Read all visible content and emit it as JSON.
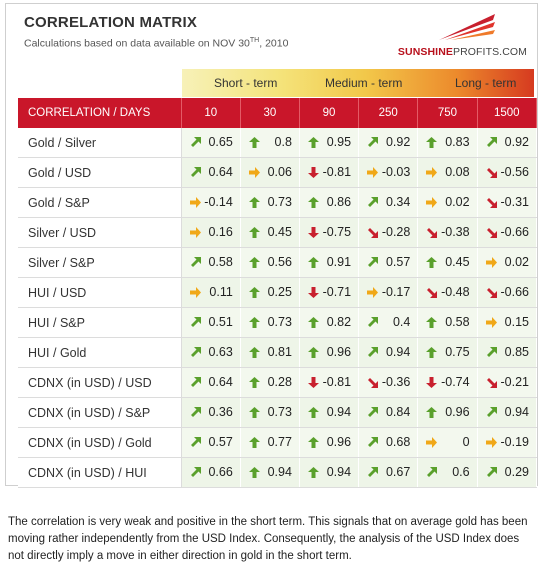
{
  "header": {
    "title": "CORRELATION MATRIX",
    "subtitle_prefix": "Calculations based on data available on  NOV 30",
    "subtitle_sup": "TH",
    "subtitle_suffix": ", 2010",
    "logo_main": "SUNSHINE",
    "logo_rest": "PROFITS.COM"
  },
  "bands": {
    "short": "Short - term",
    "medium": "Medium - term",
    "long": "Long - term"
  },
  "columns": {
    "label": "CORRELATION / DAYS",
    "days": [
      "10",
      "30",
      "90",
      "250",
      "750",
      "1500"
    ]
  },
  "colors": {
    "up": "#5aa02c",
    "down": "#c8202e",
    "side": "#f0a818",
    "header_red": "#c9162a"
  },
  "rows": [
    {
      "pair": "Gold / Silver",
      "values": [
        "0.65",
        "0.8",
        "0.95",
        "0.92",
        "0.83",
        "0.92"
      ],
      "dirs": [
        "up-right",
        "up",
        "up",
        "up-right",
        "up",
        "up-right"
      ]
    },
    {
      "pair": "Gold / USD",
      "values": [
        "0.64",
        "0.06",
        "-0.81",
        "-0.03",
        "0.08",
        "-0.56"
      ],
      "dirs": [
        "up-right",
        "right",
        "down",
        "right",
        "right",
        "down-right"
      ]
    },
    {
      "pair": "Gold / S&P",
      "values": [
        "-0.14",
        "0.73",
        "0.86",
        "0.34",
        "0.02",
        "-0.31"
      ],
      "dirs": [
        "right",
        "up",
        "up",
        "up-right",
        "right",
        "down-right"
      ]
    },
    {
      "pair": "Silver / USD",
      "values": [
        "0.16",
        "0.45",
        "-0.75",
        "-0.28",
        "-0.38",
        "-0.66"
      ],
      "dirs": [
        "right",
        "up",
        "down",
        "down-right",
        "down-right",
        "down-right"
      ]
    },
    {
      "pair": "Silver / S&P",
      "values": [
        "0.58",
        "0.56",
        "0.91",
        "0.57",
        "0.45",
        "0.02"
      ],
      "dirs": [
        "up-right",
        "up",
        "up",
        "up-right",
        "up",
        "right"
      ]
    },
    {
      "pair": "HUI / USD",
      "values": [
        "0.11",
        "0.25",
        "-0.71",
        "-0.17",
        "-0.48",
        "-0.66"
      ],
      "dirs": [
        "right",
        "up",
        "down",
        "right",
        "down-right",
        "down-right"
      ]
    },
    {
      "pair": "HUI / S&P",
      "values": [
        "0.51",
        "0.73",
        "0.82",
        "0.4",
        "0.58",
        "0.15"
      ],
      "dirs": [
        "up-right",
        "up",
        "up",
        "up-right",
        "up",
        "right"
      ]
    },
    {
      "pair": "HUI / Gold",
      "values": [
        "0.63",
        "0.81",
        "0.96",
        "0.94",
        "0.75",
        "0.85"
      ],
      "dirs": [
        "up-right",
        "up",
        "up",
        "up-right",
        "up",
        "up-right"
      ]
    },
    {
      "pair": "CDNX (in USD) / USD",
      "values": [
        "0.64",
        "0.28",
        "-0.81",
        "-0.36",
        "-0.74",
        "-0.21"
      ],
      "dirs": [
        "up-right",
        "up",
        "down",
        "down-right",
        "down",
        "down-right"
      ]
    },
    {
      "pair": "CDNX (in USD) / S&P",
      "values": [
        "0.36",
        "0.73",
        "0.94",
        "0.84",
        "0.96",
        "0.94"
      ],
      "dirs": [
        "up-right",
        "up",
        "up",
        "up-right",
        "up",
        "up-right"
      ]
    },
    {
      "pair": "CDNX (in USD) / Gold",
      "values": [
        "0.57",
        "0.77",
        "0.96",
        "0.68",
        "0",
        "-0.19"
      ],
      "dirs": [
        "up-right",
        "up",
        "up",
        "up-right",
        "right",
        "right"
      ]
    },
    {
      "pair": "CDNX (in USD) / HUI",
      "values": [
        "0.66",
        "0.94",
        "0.94",
        "0.67",
        "0.6",
        "0.29"
      ],
      "dirs": [
        "up-right",
        "up",
        "up",
        "up-right",
        "up-right",
        "up-right"
      ]
    }
  ],
  "note": "The correlation is very weak and positive in the short term. This signals that on average gold has been moving rather independently from the USD Index. Consequently, the analysis of the USD Index does not directly imply a move in either direction in gold in the short term."
}
